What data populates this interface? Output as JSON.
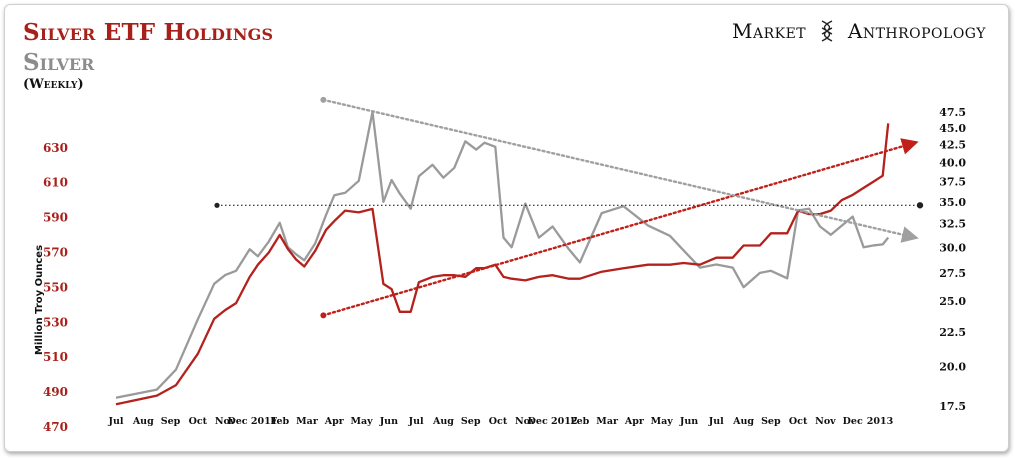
{
  "header": {
    "title": "Silver ETF Holdings",
    "subtitle": "Silver",
    "frequency": "(Weekly)",
    "brand_left": "Market",
    "brand_right": "Anthropology",
    "brand_icon": "dna-helix-icon"
  },
  "colors": {
    "etf": "#b3221c",
    "silver": "#9a9a9a",
    "etf_trend": "#c0201a",
    "silver_trend": "#a0a0a0",
    "level": "#222222"
  },
  "chart_data": {
    "type": "line",
    "title": "Silver ETF Holdings",
    "subtitle": "Silver",
    "frequency": "(Weekly)",
    "ylabel": "Million Troy Ounces",
    "ylim": [
      470,
      650
    ],
    "y_ticks": [
      470,
      490,
      510,
      530,
      550,
      570,
      590,
      610,
      630
    ],
    "y2_scale": "log",
    "y2_ticks": [
      "17.5",
      "20.0",
      "22.5",
      "25.0",
      "27.5",
      "30.0",
      "32.5",
      "35.0",
      "37.5",
      "40.0",
      "42.5",
      "45.0",
      "47.5"
    ],
    "x_labels": [
      "Jul",
      "Aug",
      "Sep",
      "Oct",
      "Nov",
      "Dec 2011",
      "Feb",
      "Mar",
      "Apr",
      "May",
      "Jun",
      "Jul",
      "Aug",
      "Sep",
      "Oct",
      "Nov",
      "Dec 2012",
      "Feb",
      "Mar",
      "Apr",
      "May",
      "Jun",
      "Jul",
      "Aug",
      "Sep",
      "Oct",
      "Nov",
      "Dec",
      "2013"
    ],
    "x": [
      0,
      1.5,
      2.2,
      3,
      3.6,
      4,
      4.4,
      4.9,
      5.2,
      5.6,
      6,
      6.3,
      6.6,
      6.9,
      7.3,
      7.7,
      8,
      8.4,
      8.9,
      9.4,
      9.8,
      10.1,
      10.4,
      10.8,
      11.1,
      11.6,
      12,
      12.4,
      12.8,
      13.2,
      13.5,
      13.9,
      14.2,
      14.5,
      15,
      15.5,
      16,
      16.6,
      17,
      17.8,
      18.6,
      19.5,
      20.3,
      20.8,
      21.4,
      22,
      22.6,
      23,
      23.6,
      24,
      24.6,
      25,
      25.4,
      25.8,
      26.2,
      26.6,
      27,
      27.4,
      27.8,
      28.1,
      28.3
    ],
    "series": [
      {
        "name": "Silver ETF Holdings",
        "axis": "left",
        "values": [
          483,
          488,
          494,
          512,
          532,
          537,
          541,
          556,
          563,
          570,
          580,
          572,
          566,
          562,
          571,
          583,
          588,
          594,
          593,
          595,
          552,
          549,
          536,
          536,
          553,
          556,
          557,
          557,
          556,
          561,
          561,
          563,
          556,
          555,
          554,
          556,
          557,
          555,
          555,
          559,
          561,
          563,
          563,
          564,
          563,
          567,
          567,
          574,
          574,
          581,
          581,
          594,
          592,
          592,
          594,
          600,
          603,
          607,
          611,
          614,
          644
        ]
      },
      {
        "name": "Silver",
        "axis": "right",
        "values": [
          18.0,
          18.5,
          19.8,
          23.5,
          26.5,
          27.3,
          27.7,
          29.8,
          29.1,
          30.6,
          32.6,
          30.0,
          29.3,
          28.7,
          30.4,
          33.5,
          35.8,
          36.1,
          37.6,
          47.5,
          35.0,
          37.7,
          36.0,
          34.2,
          38.2,
          39.7,
          38.0,
          39.3,
          43.0,
          41.8,
          42.8,
          42.2,
          31.0,
          30.0,
          34.8,
          31.0,
          32.2,
          29.8,
          28.5,
          33.7,
          34.5,
          32.3,
          31.2,
          29.7,
          28.0,
          28.3,
          28.0,
          26.2,
          27.5,
          27.7,
          27.0,
          34.0,
          34.2,
          32.2,
          31.3,
          32.3,
          33.3,
          30.0,
          30.2,
          30.3,
          31.0
        ]
      }
    ],
    "annotations": [
      {
        "type": "trendline",
        "series": "Silver ETF Holdings",
        "style": "dotted-arrow",
        "from": [
          7.6,
          534
        ],
        "to": [
          29.3,
          633
        ]
      },
      {
        "type": "trendline",
        "series": "Silver",
        "style": "dotted-arrow",
        "from": [
          7.6,
          49.5
        ],
        "to": [
          29.3,
          31.0
        ]
      },
      {
        "type": "hline",
        "style": "dotted",
        "axis": "right",
        "value": 34.6
      }
    ]
  }
}
